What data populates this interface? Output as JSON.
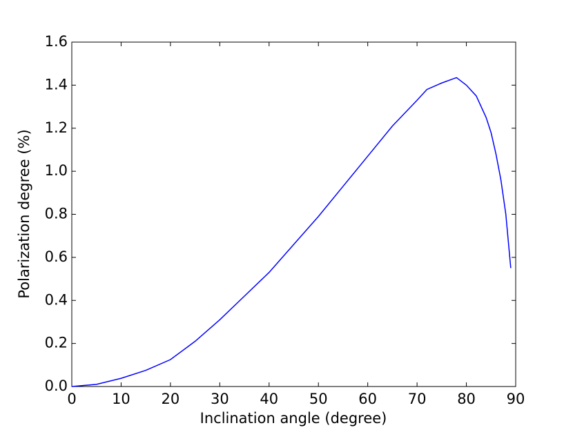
{
  "chart_data": {
    "type": "line",
    "xlabel": "Inclination angle (degree)",
    "ylabel": "Polarization degree (%)",
    "x": [
      0,
      5,
      10,
      15,
      20,
      25,
      30,
      35,
      40,
      45,
      50,
      55,
      60,
      65,
      70,
      72,
      75,
      78,
      80,
      82,
      84,
      85,
      86,
      87,
      88,
      89
    ],
    "series": [
      {
        "color": "#0000ff",
        "values": [
          0,
          0.01,
          0.038,
          0.075,
          0.125,
          0.21,
          0.31,
          0.42,
          0.53,
          0.66,
          0.79,
          0.93,
          1.07,
          1.21,
          1.33,
          1.38,
          1.41,
          1.435,
          1.4,
          1.35,
          1.25,
          1.18,
          1.08,
          0.96,
          0.8,
          0.55
        ]
      }
    ],
    "xlim": [
      0,
      90
    ],
    "ylim": [
      0,
      1.6
    ],
    "xticks": [
      0,
      10,
      20,
      30,
      40,
      50,
      60,
      70,
      80,
      90
    ],
    "yticks": [
      {
        "value": 0,
        "label": "0.0"
      },
      0.2,
      0.4,
      0.6,
      0.8,
      {
        "value": 1,
        "label": "1.0"
      },
      1.2,
      1.4,
      1.6
    ]
  }
}
